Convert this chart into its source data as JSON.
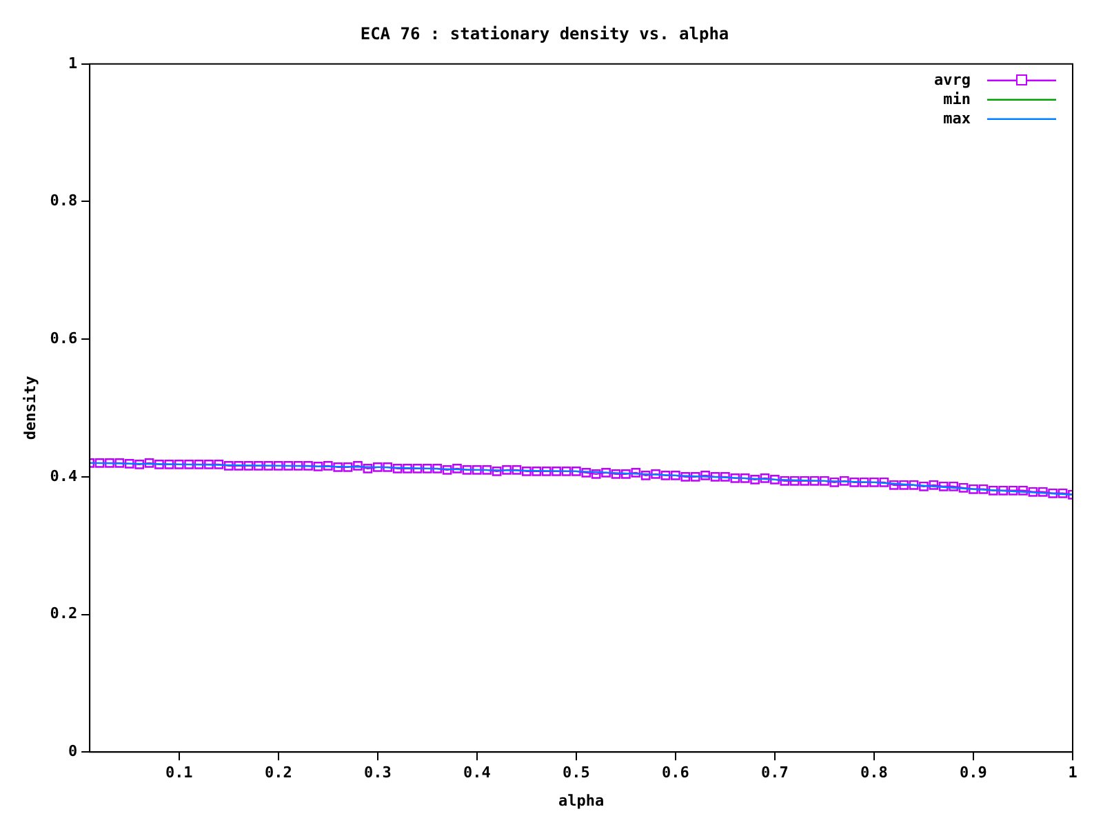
{
  "chart_data": {
    "type": "line",
    "title": "ECA 76 : stationary density vs. alpha",
    "xlabel": "alpha",
    "ylabel": "density",
    "x": [
      0.01,
      0.02,
      0.03,
      0.04,
      0.05,
      0.06,
      0.07,
      0.08,
      0.09,
      0.1,
      0.11,
      0.12,
      0.13,
      0.14,
      0.15,
      0.16,
      0.17,
      0.18,
      0.19,
      0.2,
      0.21,
      0.22,
      0.23,
      0.24,
      0.25,
      0.26,
      0.27,
      0.28,
      0.29,
      0.3,
      0.31,
      0.32,
      0.33,
      0.34,
      0.35,
      0.36,
      0.37,
      0.38,
      0.39,
      0.4,
      0.41,
      0.42,
      0.43,
      0.44,
      0.45,
      0.46,
      0.47,
      0.48,
      0.49,
      0.5,
      0.51,
      0.52,
      0.53,
      0.54,
      0.55,
      0.56,
      0.57,
      0.58,
      0.59,
      0.6,
      0.61,
      0.62,
      0.63,
      0.64,
      0.65,
      0.66,
      0.67,
      0.68,
      0.69,
      0.7,
      0.71,
      0.72,
      0.73,
      0.74,
      0.75,
      0.76,
      0.77,
      0.78,
      0.79,
      0.8,
      0.81,
      0.82,
      0.83,
      0.84,
      0.85,
      0.86,
      0.87,
      0.88,
      0.89,
      0.9,
      0.91,
      0.92,
      0.93,
      0.94,
      0.95,
      0.96,
      0.97,
      0.98,
      0.99,
      1
    ],
    "series": [
      {
        "name": "avrg",
        "color": "#bf00ff",
        "marker": "square",
        "values": [
          0.42,
          0.42,
          0.42,
          0.42,
          0.419,
          0.418,
          0.42,
          0.418,
          0.418,
          0.418,
          0.418,
          0.418,
          0.418,
          0.418,
          0.416,
          0.416,
          0.416,
          0.416,
          0.416,
          0.416,
          0.416,
          0.416,
          0.416,
          0.415,
          0.416,
          0.414,
          0.414,
          0.416,
          0.412,
          0.414,
          0.414,
          0.412,
          0.412,
          0.412,
          0.412,
          0.412,
          0.41,
          0.412,
          0.41,
          0.41,
          0.41,
          0.408,
          0.41,
          0.41,
          0.408,
          0.408,
          0.408,
          0.408,
          0.408,
          0.408,
          0.406,
          0.404,
          0.406,
          0.404,
          0.404,
          0.406,
          0.402,
          0.404,
          0.402,
          0.402,
          0.4,
          0.4,
          0.402,
          0.4,
          0.4,
          0.398,
          0.398,
          0.396,
          0.398,
          0.396,
          0.394,
          0.394,
          0.394,
          0.394,
          0.394,
          0.392,
          0.394,
          0.392,
          0.392,
          0.392,
          0.392,
          0.388,
          0.388,
          0.388,
          0.386,
          0.388,
          0.386,
          0.386,
          0.384,
          0.382,
          0.382,
          0.38,
          0.38,
          0.38,
          0.38,
          0.378,
          0.378,
          0.376,
          0.376,
          0.374
        ]
      },
      {
        "name": "min",
        "color": "#00a000",
        "marker": "none",
        "values": [
          null,
          null,
          null,
          null,
          null,
          null,
          null,
          null,
          null,
          null,
          null,
          null,
          null,
          null,
          null,
          null,
          null,
          null,
          null,
          null,
          null,
          null,
          null,
          null,
          null,
          null,
          null,
          null,
          null,
          null,
          null,
          null,
          null,
          null,
          null,
          null,
          null,
          null,
          null,
          null,
          null,
          null,
          null,
          null,
          null,
          null,
          null,
          null,
          null,
          null,
          null,
          null,
          null,
          null,
          null,
          null,
          null,
          null,
          null,
          null,
          null,
          null,
          null,
          null,
          null,
          null,
          null,
          null,
          null,
          null,
          null,
          null,
          null,
          null,
          null,
          null,
          null,
          null,
          null,
          null,
          null,
          null,
          null,
          null,
          null,
          null,
          null,
          null,
          null,
          null,
          null,
          null,
          null,
          null,
          null,
          null,
          null,
          null,
          null,
          null
        ]
      },
      {
        "name": "max",
        "color": "#0080ff",
        "marker": "none",
        "x": [
          0.01,
          0.1,
          0.2,
          0.3,
          0.4,
          0.5,
          0.6,
          0.7,
          0.8,
          0.9,
          1
        ],
        "values": [
          0.42,
          0.418,
          0.416,
          0.414,
          0.41,
          0.408,
          0.402,
          0.396,
          0.392,
          0.382,
          0.374
        ]
      }
    ],
    "xlim": [
      0.01,
      1
    ],
    "xticks": [
      0.1,
      0.2,
      0.3,
      0.4,
      0.5,
      0.6,
      0.7,
      0.8,
      0.9,
      1
    ],
    "ylim": [
      0,
      1
    ],
    "yticks": [
      0,
      0.2,
      0.4,
      0.6,
      0.8,
      1
    ],
    "grid": false,
    "legend": "top right"
  }
}
